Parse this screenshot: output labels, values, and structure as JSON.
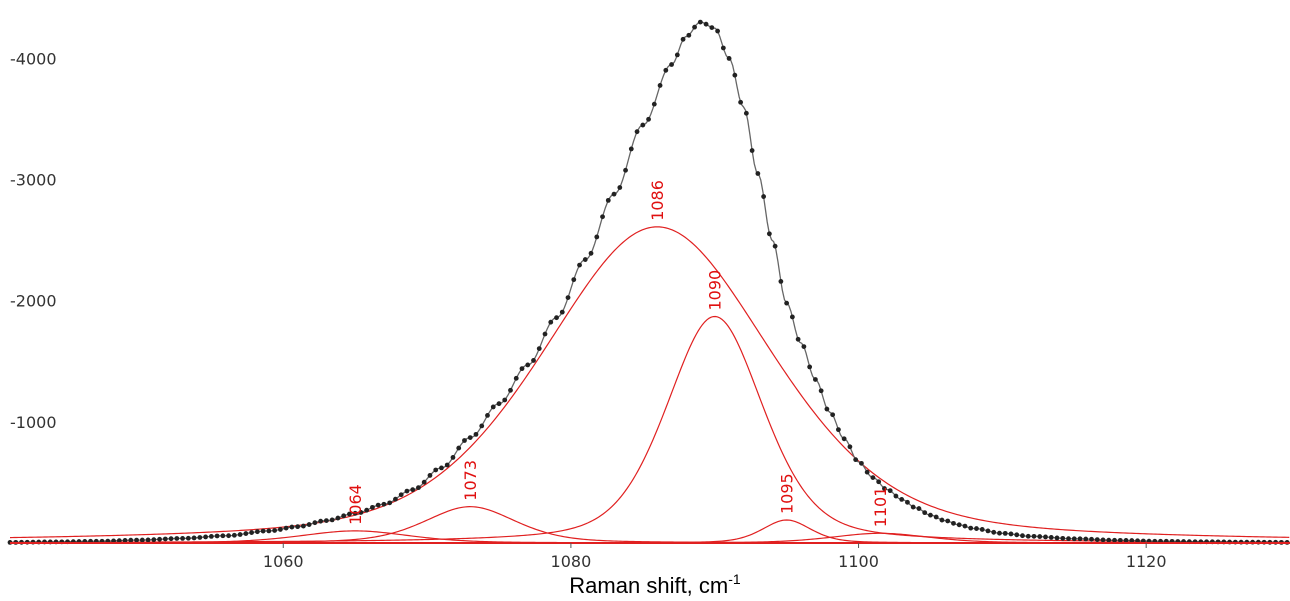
{
  "chart_data": {
    "type": "line",
    "title": "",
    "xlabel": {
      "main": "Raman shift, cm",
      "sup": "-1"
    },
    "ylabel": "",
    "xlim": [
      1041,
      1130
    ],
    "ylim": [
      0,
      4400
    ],
    "x_ticks": [
      1060,
      1080,
      1100,
      1120
    ],
    "y_ticks": [
      1000,
      2000,
      3000,
      4000
    ],
    "y_tick_labels": [
      "-1000",
      "-2000",
      "-3000",
      "-4000"
    ],
    "grid": false,
    "colors": {
      "data": "#222222",
      "fit": "#666666",
      "components": "#e02020",
      "peak_labels": "#e01010"
    },
    "components": [
      {
        "label": "1064",
        "center": 1065,
        "height": 100,
        "fwhm": 9
      },
      {
        "label": "1073",
        "center": 1073,
        "height": 300,
        "fwhm": 7.5
      },
      {
        "label": "1086",
        "center": 1086,
        "height": 2610,
        "fwhm": 19
      },
      {
        "label": "1090",
        "center": 1090,
        "height": 1870,
        "fwhm": 8
      },
      {
        "label": "1095",
        "center": 1095,
        "height": 190,
        "fwhm": 4
      },
      {
        "label": "1101",
        "center": 1101.5,
        "height": 80,
        "fwhm": 8
      }
    ],
    "measured_series": {
      "name": "",
      "points": [
        [
          1041,
          5
        ],
        [
          1044,
          9
        ],
        [
          1047,
          14
        ],
        [
          1050,
          24
        ],
        [
          1053,
          38
        ],
        [
          1056,
          60
        ],
        [
          1059,
          100
        ],
        [
          1061,
          135
        ],
        [
          1063,
          185
        ],
        [
          1065,
          245
        ],
        [
          1067,
          320
        ],
        [
          1069,
          440
        ],
        [
          1071,
          620
        ],
        [
          1073,
          870
        ],
        [
          1075,
          1150
        ],
        [
          1077,
          1470
        ],
        [
          1079,
          1860
        ],
        [
          1081,
          2340
        ],
        [
          1083,
          2880
        ],
        [
          1085,
          3450
        ],
        [
          1087,
          3950
        ],
        [
          1088,
          4180
        ],
        [
          1089,
          4300
        ],
        [
          1090,
          4250
        ],
        [
          1091,
          4000
        ],
        [
          1092,
          3600
        ],
        [
          1093,
          3050
        ],
        [
          1094,
          2500
        ],
        [
          1095,
          1980
        ],
        [
          1096,
          1650
        ],
        [
          1097,
          1350
        ],
        [
          1098,
          1080
        ],
        [
          1099,
          860
        ],
        [
          1100,
          670
        ],
        [
          1101,
          540
        ],
        [
          1102,
          440
        ],
        [
          1103,
          360
        ],
        [
          1104,
          290
        ],
        [
          1105,
          230
        ],
        [
          1106,
          185
        ],
        [
          1107,
          150
        ],
        [
          1108,
          120
        ],
        [
          1110,
          80
        ],
        [
          1112,
          55
        ],
        [
          1115,
          35
        ],
        [
          1118,
          22
        ],
        [
          1121,
          14
        ],
        [
          1124,
          10
        ],
        [
          1127,
          7
        ],
        [
          1130,
          5
        ]
      ]
    }
  }
}
